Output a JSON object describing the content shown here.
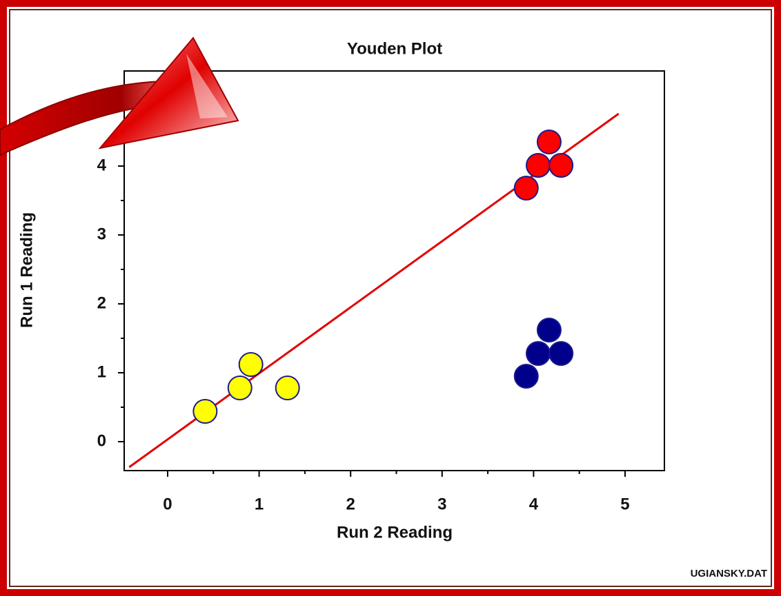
{
  "chart_data": {
    "type": "scatter",
    "title": "Youden Plot",
    "x_label": "Run 2 Reading",
    "y_label": "Run 1 Reading",
    "footnote": "UGIANSKY.DAT",
    "xlim": [
      -0.475,
      5.43
    ],
    "ylim": [
      -0.42,
      5.38
    ],
    "xticks": [
      0,
      1,
      2,
      3,
      4,
      5
    ],
    "yticks": [
      0,
      1,
      2,
      3,
      4
    ],
    "xminorticks": [
      0.5,
      1.5,
      2.5,
      3.5,
      4.5
    ],
    "yminorticks": [
      0.5,
      1.5,
      2.5,
      3.5
    ],
    "series": [
      {
        "color": "#ffff00",
        "x": [
          0.41,
          0.79,
          0.91,
          1.31
        ],
        "values": [
          0.44,
          0.78,
          1.12,
          0.78
        ]
      },
      {
        "color": "#ff0000",
        "x": [
          3.92,
          4.05,
          4.3,
          4.17
        ],
        "values": [
          3.68,
          4.01,
          4.01,
          4.35
        ]
      },
      {
        "color": "#00008b",
        "x": [
          3.92,
          4.05,
          4.3,
          4.17
        ],
        "values": [
          0.95,
          1.28,
          1.28,
          1.62
        ]
      },
      {
        "color": "#e00000",
        "line": true,
        "x": [
          -0.42,
          4.93
        ],
        "values": [
          -0.37,
          4.76
        ]
      }
    ]
  }
}
